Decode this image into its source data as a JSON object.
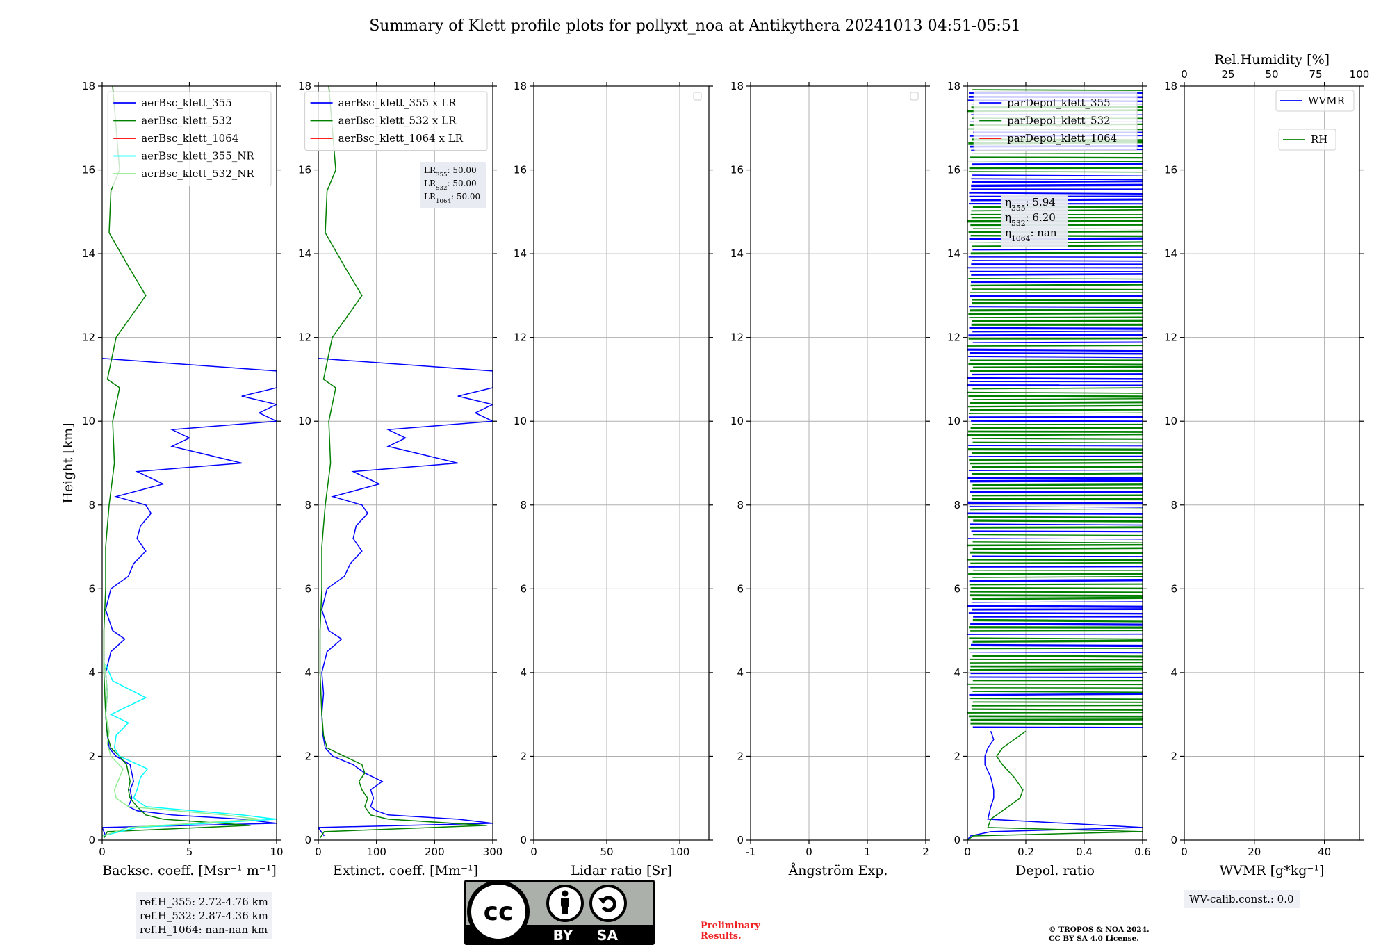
{
  "title": "Summary of Klett profile plots for pollyxt_noa at Antikythera 20241013 04:51-05:51",
  "colors": {
    "b355": "#0000ff",
    "b532": "#008000",
    "b1064": "#ff0000",
    "b355nr": "#00ffff",
    "b532nr": "#90ee90"
  },
  "footer": {
    "ref_lines": [
      "ref.H_355: 2.72-4.76 km",
      "ref.H_532: 2.87-4.36 km",
      "ref.H_1064: nan-nan km"
    ],
    "wv_calib": "WV-calib.const.: 0.0",
    "preliminary": [
      "Preliminary",
      "Results."
    ],
    "copyright": [
      "© TROPOS & NOA 2024.",
      "CC BY SA 4.0 License."
    ],
    "license_logo": {
      "icon": "cc-by-sa-logo",
      "text": [
        "BY",
        "SA"
      ]
    }
  },
  "chart_data": [
    {
      "type": "line",
      "xlabel": "Backsc. coeff. [Msr⁻¹ m⁻¹]",
      "ylabel": "Height [km]",
      "xlim": [
        0,
        10
      ],
      "xticks": [
        0,
        5,
        10
      ],
      "ylim": [
        0,
        18
      ],
      "yticks": [
        0,
        2,
        4,
        6,
        8,
        10,
        12,
        14,
        16,
        18
      ],
      "grid": true,
      "legend_placement": "top-right",
      "series": [
        {
          "name": "aerBsc_klett_355",
          "color": "#0000ff",
          "y": [
            0.1,
            0.2,
            0.3,
            0.4,
            0.5,
            0.6,
            0.7,
            0.8,
            1.0,
            1.2,
            1.4,
            1.6,
            1.8,
            2.0,
            2.2,
            2.5,
            3.0,
            3.5,
            4.0,
            4.5,
            4.8,
            5.0,
            5.5,
            6.0,
            6.3,
            6.6,
            6.9,
            7.2,
            7.5,
            7.8,
            8.0,
            8.2,
            8.5,
            8.8,
            9.0,
            9.2,
            9.4,
            9.6,
            9.8,
            10.0,
            10.2,
            10.4,
            10.6,
            10.8,
            11.2,
            11.5
          ],
          "x": [
            0.2,
            0.1,
            0.0,
            10.0,
            8.0,
            4.0,
            2.0,
            1.5,
            1.7,
            1.6,
            1.8,
            1.7,
            1.6,
            0.8,
            0.4,
            0.3,
            0.2,
            0.3,
            0.2,
            0.5,
            1.3,
            0.6,
            0.2,
            0.5,
            1.5,
            1.8,
            2.5,
            2.0,
            2.2,
            2.8,
            2.5,
            0.8,
            3.5,
            2.0,
            8.0,
            6.0,
            4.0,
            5.0,
            4.0,
            10.0,
            9.0,
            10.0,
            8.0,
            10.0,
            10.0,
            0.0
          ]
        },
        {
          "name": "aerBsc_klett_532",
          "color": "#008000",
          "y": [
            0.05,
            0.2,
            0.35,
            0.5,
            0.6,
            0.8,
            1.0,
            1.2,
            1.4,
            1.6,
            1.8,
            2.0,
            2.2,
            2.5,
            3.0,
            4.0,
            5.0,
            6.0,
            7.0,
            8.0,
            9.0,
            10.0,
            10.8,
            11.0,
            12.0,
            13.0,
            13.7,
            14.5,
            15.5,
            16.0,
            17.0,
            18.0
          ],
          "x": [
            0.1,
            0.3,
            8.5,
            3.5,
            2.5,
            2.0,
            1.6,
            1.5,
            1.6,
            1.5,
            1.4,
            1.0,
            0.5,
            0.3,
            0.2,
            0.1,
            0.1,
            0.2,
            0.2,
            0.4,
            0.7,
            0.6,
            1.0,
            0.3,
            0.8,
            2.5,
            1.5,
            0.4,
            0.5,
            1.0,
            0.8,
            0.6
          ]
        },
        {
          "name": "aerBsc_klett_1064",
          "color": "#ff0000",
          "y": [],
          "x": []
        },
        {
          "name": "aerBsc_klett_355_NR",
          "color": "#00ffff",
          "y": [
            0.1,
            0.3,
            0.5,
            0.6,
            0.8,
            1.0,
            1.2,
            1.5,
            1.7,
            2.0,
            2.2,
            2.5,
            2.8,
            3.0,
            3.4,
            3.8,
            4.2
          ],
          "x": [
            0.0,
            2.0,
            10.0,
            8.0,
            2.5,
            1.8,
            2.0,
            2.2,
            2.6,
            1.0,
            0.7,
            0.8,
            1.5,
            0.5,
            2.5,
            0.6,
            0.2
          ]
        },
        {
          "name": "aerBsc_klett_532_NR",
          "color": "#90ee90",
          "y": [
            0.1,
            0.3,
            0.5,
            0.6,
            0.8,
            1.0,
            1.2,
            1.5,
            1.7,
            2.0,
            2.3,
            2.6,
            3.0,
            3.5,
            4.0,
            4.3
          ],
          "x": [
            0.0,
            1.5,
            9.0,
            7.0,
            1.5,
            0.8,
            0.7,
            1.0,
            1.2,
            0.5,
            0.3,
            0.4,
            0.2,
            0.3,
            0.2,
            0.1
          ]
        }
      ]
    },
    {
      "type": "line",
      "xlabel": "Extinct. coeff. [Mm⁻¹]",
      "xlim": [
        0,
        300
      ],
      "xticks": [
        0,
        100,
        200,
        300
      ],
      "ylim": [
        0,
        18
      ],
      "yticks": [
        0,
        2,
        4,
        6,
        8,
        10,
        12,
        14,
        16,
        18
      ],
      "grid": true,
      "legend_placement": "top-right",
      "annotation": [
        "LR355: 50.00",
        "LR532: 50.00",
        "LR1064: 50.00"
      ],
      "series": [
        {
          "name": "aerBsc_klett_355 x LR",
          "color": "#0000ff",
          "y": [
            0.1,
            0.2,
            0.3,
            0.4,
            0.5,
            0.6,
            0.7,
            0.8,
            1.0,
            1.2,
            1.4,
            1.6,
            1.8,
            2.0,
            2.2,
            2.5,
            3.0,
            3.5,
            4.0,
            4.5,
            4.8,
            5.0,
            5.5,
            6.0,
            6.3,
            6.6,
            6.9,
            7.2,
            7.5,
            7.8,
            8.0,
            8.2,
            8.5,
            8.8,
            9.0,
            9.2,
            9.4,
            9.6,
            9.8,
            10.0,
            10.2,
            10.4,
            10.6,
            10.8,
            11.2,
            11.5
          ],
          "x": [
            10,
            5,
            0,
            300,
            240,
            120,
            100,
            90,
            95,
            90,
            110,
            80,
            60,
            25,
            12,
            8,
            6,
            9,
            6,
            15,
            40,
            18,
            6,
            15,
            45,
            55,
            75,
            60,
            65,
            85,
            75,
            25,
            105,
            60,
            240,
            180,
            120,
            150,
            120,
            300,
            270,
            300,
            240,
            300,
            300,
            0
          ]
        },
        {
          "name": "aerBsc_klett_532 x LR",
          "color": "#008000",
          "y": [
            0.05,
            0.2,
            0.35,
            0.5,
            0.6,
            0.8,
            1.0,
            1.2,
            1.4,
            1.6,
            1.8,
            2.0,
            2.2,
            2.5,
            3.0,
            4.0,
            5.0,
            6.0,
            7.0,
            8.0,
            9.0,
            10.0,
            10.8,
            11.0,
            12.0,
            13.0,
            13.7,
            14.5,
            15.5,
            16.0,
            17.0,
            18.0
          ],
          "x": [
            3,
            10,
            290,
            120,
            90,
            80,
            85,
            75,
            70,
            80,
            75,
            45,
            15,
            9,
            6,
            3,
            3,
            6,
            6,
            12,
            21,
            18,
            30,
            9,
            24,
            75,
            45,
            12,
            15,
            30,
            24,
            18
          ]
        },
        {
          "name": "aerBsc_klett_1064 x LR",
          "color": "#ff0000",
          "y": [],
          "x": []
        }
      ]
    },
    {
      "type": "line",
      "xlabel": "Lidar ratio [Sr]",
      "xlim": [
        0,
        120
      ],
      "xticks": [
        0,
        50,
        100
      ],
      "ylim": [
        0,
        18
      ],
      "yticks": [
        0,
        2,
        4,
        6,
        8,
        10,
        12,
        14,
        16,
        18
      ],
      "grid": true,
      "legend_placement": "top-right",
      "series": []
    },
    {
      "type": "line",
      "xlabel": "Ångström Exp.",
      "xlim": [
        -1,
        2
      ],
      "xticks": [
        -1,
        0,
        1,
        2
      ],
      "ylim": [
        0,
        18
      ],
      "yticks": [
        0,
        2,
        4,
        6,
        8,
        10,
        12,
        14,
        16,
        18
      ],
      "grid": true,
      "legend_placement": "top-right",
      "series": []
    },
    {
      "type": "line",
      "xlabel": "Depol. ratio",
      "xlim": [
        0,
        0.6
      ],
      "xticks": [
        0.0,
        0.2,
        0.4,
        0.6
      ],
      "ylim": [
        0,
        18
      ],
      "yticks": [
        0,
        2,
        4,
        6,
        8,
        10,
        12,
        14,
        16,
        18
      ],
      "grid": true,
      "legend_placement": "top-right",
      "annotation": [
        "η355: 5.94",
        "η532: 6.20",
        "η1064: nan"
      ],
      "series": [
        {
          "name": "parDepol_klett_355",
          "color": "#0000ff",
          "y": [
            0.0,
            0.1,
            0.2,
            0.3,
            0.5,
            0.8,
            1.0,
            1.2,
            1.5,
            1.8,
            2.0,
            2.2,
            2.4,
            2.6
          ],
          "x": [
            0.0,
            0.01,
            0.08,
            0.6,
            0.07,
            0.08,
            0.09,
            0.09,
            0.08,
            0.06,
            0.06,
            0.07,
            0.09,
            0.08
          ]
        },
        {
          "name": "parDepol_klett_532",
          "color": "#008000",
          "y": [
            0.0,
            0.1,
            0.2,
            0.3,
            0.5,
            0.8,
            1.0,
            1.2,
            1.5,
            1.8,
            2.0,
            2.2,
            2.4,
            2.6
          ],
          "x": [
            0.0,
            0.02,
            0.6,
            0.07,
            0.08,
            0.14,
            0.18,
            0.19,
            0.16,
            0.12,
            0.1,
            0.12,
            0.16,
            0.2
          ]
        },
        {
          "name": "parDepol_klett_1064",
          "color": "#ff0000",
          "y": [],
          "x": []
        }
      ],
      "noisy_region_km": [
        2.7,
        18
      ]
    },
    {
      "type": "line",
      "xlabel": "WVMR [g*kg⁻¹]",
      "x2label": "Rel.Humidity [%]",
      "xlim": [
        0,
        50
      ],
      "xticks": [
        0,
        20,
        40
      ],
      "x2lim": [
        0,
        100
      ],
      "x2ticks": [
        0,
        25,
        50,
        75,
        100
      ],
      "ylim": [
        0,
        18
      ],
      "yticks": [
        0,
        2,
        4,
        6,
        8,
        10,
        12,
        14,
        16,
        18
      ],
      "grid": true,
      "legend_placement": "top-right",
      "series": [
        {
          "name": "WVMR",
          "color": "#0000ff",
          "y": [],
          "x": []
        },
        {
          "name": "RH",
          "color": "#008000",
          "y": [],
          "x": []
        }
      ]
    }
  ]
}
